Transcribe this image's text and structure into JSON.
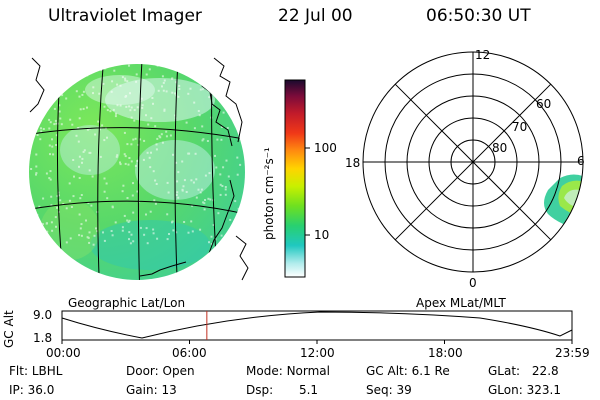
{
  "header": {
    "instrument": "Ultraviolet Imager",
    "date": "22 Jul 00",
    "time": "06:50:30 UT"
  },
  "left_panel": {
    "label": "Geographic Lat/Lon"
  },
  "right_panel": {
    "label": "Apex MLat/MLT",
    "mlt_labels": [
      "12",
      "18",
      "6",
      "0"
    ],
    "mlat_labels": [
      "60",
      "70",
      "80"
    ]
  },
  "colorbar": {
    "unit_label": "photon cm⁻²s⁻¹",
    "tick_labels": [
      "100",
      "10"
    ],
    "colors": [
      "#1a0a2e",
      "#7a0b3a",
      "#c21b2a",
      "#f03818",
      "#ff8c10",
      "#ffd400",
      "#c8f000",
      "#6ee020",
      "#28d070",
      "#20c8c0",
      "#b0ecec",
      "#ffffff"
    ]
  },
  "timeline": {
    "axis_label": "GC Alt",
    "ytick_top": "9.0",
    "ytick_bottom": "1.8",
    "xticks": [
      "00:00",
      "06:00",
      "12:00",
      "18:00",
      "23:59"
    ],
    "current_time_fraction": 0.284
  },
  "info": {
    "flt_label": "Flt:",
    "flt_value": "LBHL",
    "ip_label": "IP:",
    "ip_value": "36.0",
    "door_label": "Door:",
    "door_value": "Open",
    "gain_label": "Gain:",
    "gain_value": "13",
    "mode_label": "Mode:",
    "mode_value": "Normal",
    "dsp_label": "Dsp:",
    "dsp_value": "5.1",
    "gcalt_label": "GC Alt:",
    "gcalt_value": "6.1 Re",
    "seq_label": "Seq:",
    "seq_value": "39",
    "glat_label": "GLat:",
    "glat_value": "22.8",
    "glon_label": "GLon:",
    "glon_value": "323.1"
  }
}
